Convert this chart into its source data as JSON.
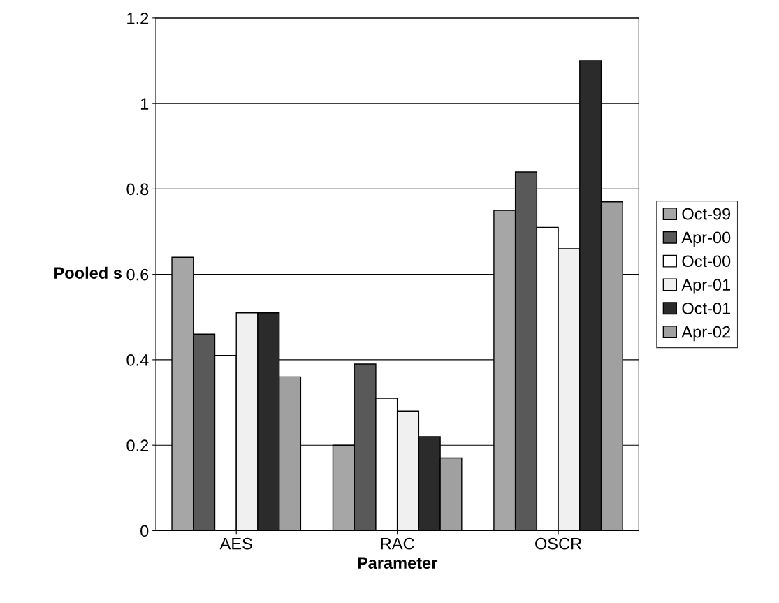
{
  "chart_data": {
    "type": "bar",
    "xlabel": "Parameter",
    "ylabel": "Pooled s",
    "categories": [
      "AES",
      "RAC",
      "OSCR"
    ],
    "series": [
      {
        "name": "Oct-99",
        "color": "#a6a6a6",
        "values": [
          0.64,
          0.2,
          0.75
        ]
      },
      {
        "name": "Apr-00",
        "color": "#595959",
        "values": [
          0.46,
          0.39,
          0.84
        ]
      },
      {
        "name": "Oct-00",
        "color": "#ffffff",
        "values": [
          0.41,
          0.31,
          0.71
        ]
      },
      {
        "name": "Apr-01",
        "color": "#f0f0f0",
        "values": [
          0.51,
          0.28,
          0.66
        ]
      },
      {
        "name": "Oct-01",
        "color": "#2b2b2b",
        "values": [
          0.51,
          0.22,
          1.1
        ]
      },
      {
        "name": "Apr-02",
        "color": "#a0a0a0",
        "values": [
          0.36,
          0.17,
          0.77
        ]
      }
    ],
    "ylim": [
      0,
      1.2
    ],
    "yticks": [
      0,
      0.2,
      0.4,
      0.6,
      0.8,
      1,
      1.2
    ],
    "grid": "y",
    "legend": "right"
  }
}
